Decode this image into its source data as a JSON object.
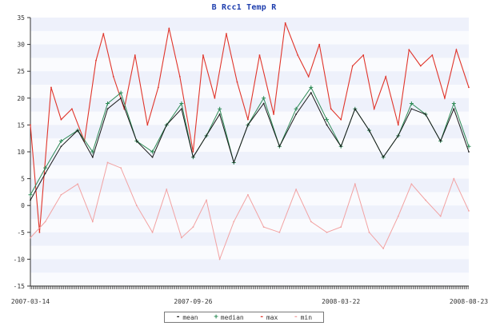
{
  "chart_data": {
    "type": "line",
    "title": "B Rcc1 Temp R",
    "xlabel": "",
    "ylabel": "",
    "x_ticks": [
      "2007-03-14",
      "2007-09-26",
      "2008-03-22",
      "2008-08-23"
    ],
    "x_range": [
      "2007-03-14",
      "2008-08-23"
    ],
    "y_ticks": [
      35,
      30,
      25,
      20,
      15,
      10,
      5,
      0,
      -5,
      -10,
      -15
    ],
    "ylim": [
      -15,
      35
    ],
    "grid": "horizontal bands",
    "legend_position": "bottom-center",
    "series": [
      {
        "name": "mean",
        "color": "#1a1a1a",
        "marker": "-",
        "x": [
          "2007-03-14",
          "2007-04-01",
          "2007-04-20",
          "2007-05-10",
          "2007-05-28",
          "2007-06-15",
          "2007-07-01",
          "2007-07-20",
          "2007-08-08",
          "2007-08-25",
          "2007-09-12",
          "2007-09-26",
          "2007-10-12",
          "2007-10-28",
          "2007-11-14",
          "2007-12-01",
          "2007-12-20",
          "2008-01-08",
          "2008-01-28",
          "2008-02-15",
          "2008-03-05",
          "2008-03-22",
          "2008-04-08",
          "2008-04-25",
          "2008-05-12",
          "2008-05-30",
          "2008-06-15",
          "2008-07-02",
          "2008-07-20",
          "2008-08-05",
          "2008-08-23"
        ],
        "values": [
          1,
          6,
          11,
          14,
          9,
          18,
          20,
          12,
          9,
          15,
          18,
          9,
          13,
          17,
          8,
          15,
          19,
          11,
          17,
          21,
          15,
          11,
          18,
          14,
          9,
          13,
          18,
          17,
          12,
          18,
          10
        ]
      },
      {
        "name": "median",
        "color": "#2e8b57",
        "marker": "+",
        "x": [
          "2007-03-14",
          "2007-04-01",
          "2007-04-20",
          "2007-05-10",
          "2007-05-28",
          "2007-06-15",
          "2007-07-01",
          "2007-07-20",
          "2007-08-08",
          "2007-08-25",
          "2007-09-12",
          "2007-09-26",
          "2007-10-12",
          "2007-10-28",
          "2007-11-14",
          "2007-12-01",
          "2007-12-20",
          "2008-01-08",
          "2008-01-28",
          "2008-02-15",
          "2008-03-05",
          "2008-03-22",
          "2008-04-08",
          "2008-04-25",
          "2008-05-12",
          "2008-05-30",
          "2008-06-15",
          "2008-07-02",
          "2008-07-20",
          "2008-08-05",
          "2008-08-23"
        ],
        "values": [
          2,
          7,
          12,
          14,
          10,
          19,
          21,
          12,
          10,
          15,
          19,
          9,
          13,
          18,
          8,
          15,
          20,
          11,
          18,
          22,
          16,
          11,
          18,
          14,
          9,
          13,
          19,
          17,
          12,
          19,
          11
        ]
      },
      {
        "name": "max",
        "color": "#e0352b",
        "marker": "-",
        "x": [
          "2007-03-14",
          "2007-03-25",
          "2007-04-08",
          "2007-04-20",
          "2007-05-03",
          "2007-05-18",
          "2007-06-01",
          "2007-06-10",
          "2007-06-22",
          "2007-07-05",
          "2007-07-18",
          "2007-08-02",
          "2007-08-15",
          "2007-08-28",
          "2007-09-10",
          "2007-09-26",
          "2007-10-08",
          "2007-10-22",
          "2007-11-05",
          "2007-11-18",
          "2007-12-01",
          "2007-12-15",
          "2008-01-01",
          "2008-01-15",
          "2008-01-30",
          "2008-02-12",
          "2008-02-25",
          "2008-03-10",
          "2008-03-22",
          "2008-04-05",
          "2008-04-18",
          "2008-05-01",
          "2008-05-15",
          "2008-05-30",
          "2008-06-12",
          "2008-06-26",
          "2008-07-10",
          "2008-07-25",
          "2008-08-08",
          "2008-08-23"
        ],
        "values": [
          15,
          -5,
          22,
          16,
          18,
          12,
          27,
          32,
          24,
          18,
          28,
          15,
          22,
          33,
          24,
          10,
          28,
          20,
          32,
          23,
          16,
          28,
          17,
          34,
          28,
          24,
          30,
          18,
          16,
          26,
          28,
          18,
          24,
          15,
          29,
          26,
          28,
          20,
          29,
          22
        ]
      },
      {
        "name": "min",
        "color": "#f2a2a2",
        "marker": "-",
        "x": [
          "2007-03-14",
          "2007-04-01",
          "2007-04-20",
          "2007-05-10",
          "2007-05-28",
          "2007-06-15",
          "2007-07-01",
          "2007-07-20",
          "2007-08-08",
          "2007-08-25",
          "2007-09-12",
          "2007-09-26",
          "2007-10-12",
          "2007-10-28",
          "2007-11-14",
          "2007-12-01",
          "2007-12-20",
          "2008-01-08",
          "2008-01-28",
          "2008-02-15",
          "2008-03-05",
          "2008-03-22",
          "2008-04-08",
          "2008-04-25",
          "2008-05-12",
          "2008-05-30",
          "2008-06-15",
          "2008-07-02",
          "2008-07-20",
          "2008-08-05",
          "2008-08-23"
        ],
        "values": [
          -6,
          -3,
          2,
          4,
          -3,
          8,
          7,
          0,
          -5,
          3,
          -6,
          -4,
          1,
          -10,
          -3,
          2,
          -4,
          -5,
          3,
          -3,
          -5,
          -4,
          4,
          -5,
          -8,
          -2,
          4,
          1,
          -2,
          5,
          -1
        ]
      }
    ]
  }
}
